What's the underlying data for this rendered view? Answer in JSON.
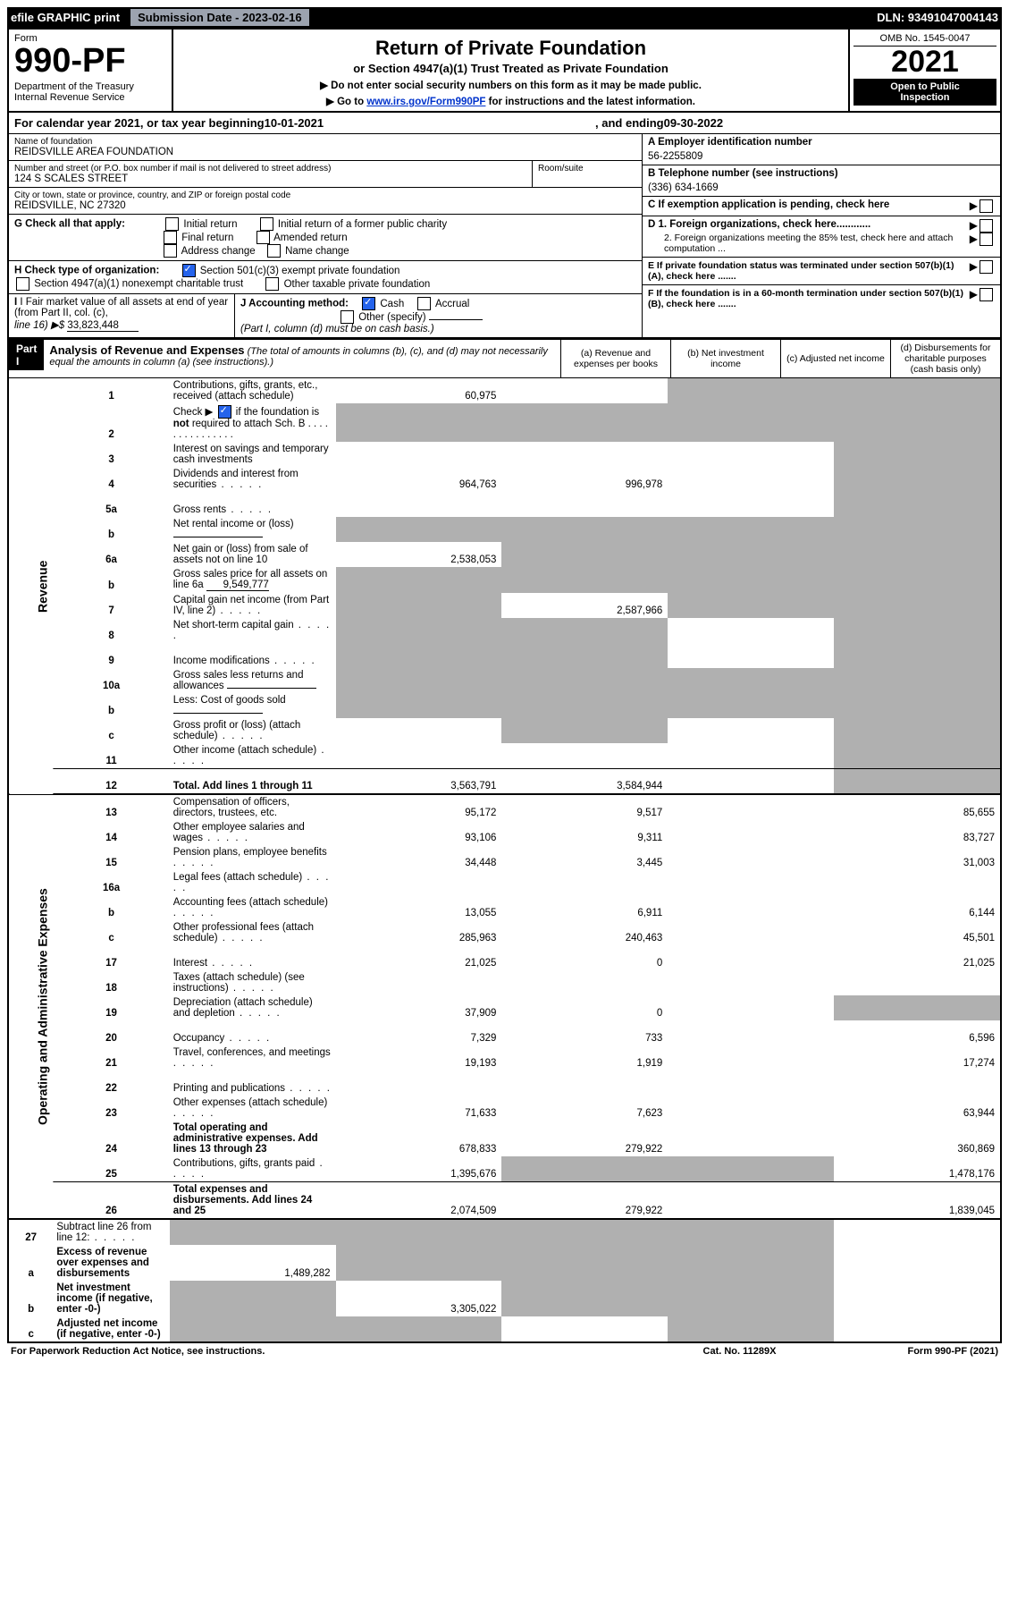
{
  "topbar": {
    "efile": "efile GRAPHIC print",
    "subdate_label": "Submission Date - 2023-02-16",
    "dln": "DLN: 93491047004143"
  },
  "header": {
    "form_label": "Form",
    "form_number": "990-PF",
    "dept": "Department of the Treasury",
    "irs": "Internal Revenue Service",
    "title": "Return of Private Foundation",
    "subtitle1": "or Section 4947(a)(1) Trust Treated as Private Foundation",
    "subtitle2": "▶ Do not enter social security numbers on this form as it may be made public.",
    "subtitle3_prefix": "▶ Go to ",
    "subtitle3_link": "www.irs.gov/Form990PF",
    "subtitle3_suffix": " for instructions and the latest information.",
    "omb": "OMB No. 1545-0047",
    "year": "2021",
    "open": "Open to Public",
    "inspection": "Inspection"
  },
  "period": {
    "prefix": "For calendar year 2021, or tax year beginning ",
    "begin": "10-01-2021",
    "mid": " , and ending ",
    "end": "09-30-2022"
  },
  "entity": {
    "name_label": "Name of foundation",
    "name": "REIDSVILLE AREA FOUNDATION",
    "addr_label": "Number and street (or P.O. box number if mail is not delivered to street address)",
    "addr": "124 S SCALES STREET",
    "room_label": "Room/suite",
    "city_label": "City or town, state or province, country, and ZIP or foreign postal code",
    "city": "REIDSVILLE, NC  27320",
    "ein_label": "A Employer identification number",
    "ein": "56-2255809",
    "phone_label": "B Telephone number (see instructions)",
    "phone": "(336) 634-1669",
    "c_label": "C If exemption application is pending, check here",
    "d1": "D 1. Foreign organizations, check here............",
    "d2": "2. Foreign organizations meeting the 85% test, check here and attach computation ...",
    "e_label": "E  If private foundation status was terminated under section 507(b)(1)(A), check here .......",
    "f_label": "F  If the foundation is in a 60-month termination under section 507(b)(1)(B), check here .......",
    "g_label": "G Check all that apply:",
    "g_opts": [
      "Initial return",
      "Initial return of a former public charity",
      "Final return",
      "Amended return",
      "Address change",
      "Name change"
    ],
    "h_label": "H Check type of organization:",
    "h1": "Section 501(c)(3) exempt private foundation",
    "h2": "Section 4947(a)(1) nonexempt charitable trust",
    "h3": "Other taxable private foundation",
    "i_label": "I Fair market value of all assets at end of year (from Part II, col. (c), ",
    "i_line": "line 16) ▶$ ",
    "i_value": "33,823,448",
    "j_label": "J Accounting method:",
    "j_cash": "Cash",
    "j_accrual": "Accrual",
    "j_other": "Other (specify)",
    "j_note": "(Part I, column (d) must be on cash basis.)"
  },
  "part1": {
    "label": "Part I",
    "title": "Analysis of Revenue and Expenses",
    "title_note": " (The total of amounts in columns (b), (c), and (d) may not necessarily equal the amounts in column (a) (see instructions).)",
    "col_a": "(a)   Revenue and expenses per books",
    "col_b": "(b)   Net investment income",
    "col_c": "(c)   Adjusted net income",
    "col_d": "(d)   Disbursements for charitable purposes (cash basis only)"
  },
  "side_labels": {
    "revenue": "Revenue",
    "expenses": "Operating and Administrative Expenses"
  },
  "lines": [
    {
      "n": "1",
      "d": "Contributions, gifts, grants, etc., received (attach schedule)",
      "a": "60,975",
      "b": "",
      "c": "sh",
      "dcol": "sh"
    },
    {
      "n": "2",
      "d": "Check ▶ ☑ if the foundation is not required to attach Sch. B",
      "a": "sh",
      "b": "sh",
      "c": "sh",
      "dcol": "sh",
      "check": true
    },
    {
      "n": "3",
      "d": "Interest on savings and temporary cash investments",
      "a": "",
      "b": "",
      "c": "",
      "dcol": "sh"
    },
    {
      "n": "4",
      "d": "Dividends and interest from securities",
      "a": "964,763",
      "b": "996,978",
      "c": "",
      "dcol": "sh"
    },
    {
      "n": "5a",
      "d": "Gross rents",
      "a": "",
      "b": "",
      "c": "",
      "dcol": "sh"
    },
    {
      "n": "b",
      "d": "Net rental income or (loss)",
      "a": "sh",
      "b": "sh",
      "c": "sh",
      "dcol": "sh",
      "inline": true
    },
    {
      "n": "6a",
      "d": "Net gain or (loss) from sale of assets not on line 10",
      "a": "2,538,053",
      "b": "sh",
      "c": "sh",
      "dcol": "sh"
    },
    {
      "n": "b",
      "d": "Gross sales price for all assets on line 6a",
      "a": "sh",
      "b": "sh",
      "c": "sh",
      "dcol": "sh",
      "inline_val": "9,549,777"
    },
    {
      "n": "7",
      "d": "Capital gain net income (from Part IV, line 2)",
      "a": "sh",
      "b": "2,587,966",
      "c": "sh",
      "dcol": "sh"
    },
    {
      "n": "8",
      "d": "Net short-term capital gain",
      "a": "sh",
      "b": "sh",
      "c": "",
      "dcol": "sh"
    },
    {
      "n": "9",
      "d": "Income modifications",
      "a": "sh",
      "b": "sh",
      "c": "",
      "dcol": "sh"
    },
    {
      "n": "10a",
      "d": "Gross sales less returns and allowances",
      "a": "sh",
      "b": "sh",
      "c": "sh",
      "dcol": "sh",
      "inline": true
    },
    {
      "n": "b",
      "d": "Less: Cost of goods sold",
      "a": "sh",
      "b": "sh",
      "c": "sh",
      "dcol": "sh",
      "inline": true
    },
    {
      "n": "c",
      "d": "Gross profit or (loss) (attach schedule)",
      "a": "",
      "b": "sh",
      "c": "",
      "dcol": "sh"
    },
    {
      "n": "11",
      "d": "Other income (attach schedule)",
      "a": "",
      "b": "",
      "c": "",
      "dcol": "sh"
    },
    {
      "n": "12",
      "d": "Total. Add lines 1 through 11",
      "a": "3,563,791",
      "b": "3,584,944",
      "c": "",
      "dcol": "sh",
      "bold": true
    }
  ],
  "exp_lines": [
    {
      "n": "13",
      "d": "Compensation of officers, directors, trustees, etc.",
      "a": "95,172",
      "b": "9,517",
      "c": "",
      "dcol": "85,655"
    },
    {
      "n": "14",
      "d": "Other employee salaries and wages",
      "a": "93,106",
      "b": "9,311",
      "c": "",
      "dcol": "83,727"
    },
    {
      "n": "15",
      "d": "Pension plans, employee benefits",
      "a": "34,448",
      "b": "3,445",
      "c": "",
      "dcol": "31,003"
    },
    {
      "n": "16a",
      "d": "Legal fees (attach schedule)",
      "a": "",
      "b": "",
      "c": "",
      "dcol": ""
    },
    {
      "n": "b",
      "d": "Accounting fees (attach schedule)",
      "a": "13,055",
      "b": "6,911",
      "c": "",
      "dcol": "6,144"
    },
    {
      "n": "c",
      "d": "Other professional fees (attach schedule)",
      "a": "285,963",
      "b": "240,463",
      "c": "",
      "dcol": "45,501"
    },
    {
      "n": "17",
      "d": "Interest",
      "a": "21,025",
      "b": "0",
      "c": "",
      "dcol": "21,025"
    },
    {
      "n": "18",
      "d": "Taxes (attach schedule) (see instructions)",
      "a": "",
      "b": "",
      "c": "",
      "dcol": ""
    },
    {
      "n": "19",
      "d": "Depreciation (attach schedule) and depletion",
      "a": "37,909",
      "b": "0",
      "c": "",
      "dcol": "sh"
    },
    {
      "n": "20",
      "d": "Occupancy",
      "a": "7,329",
      "b": "733",
      "c": "",
      "dcol": "6,596"
    },
    {
      "n": "21",
      "d": "Travel, conferences, and meetings",
      "a": "19,193",
      "b": "1,919",
      "c": "",
      "dcol": "17,274"
    },
    {
      "n": "22",
      "d": "Printing and publications",
      "a": "",
      "b": "",
      "c": "",
      "dcol": ""
    },
    {
      "n": "23",
      "d": "Other expenses (attach schedule)",
      "a": "71,633",
      "b": "7,623",
      "c": "",
      "dcol": "63,944",
      "icon": true
    },
    {
      "n": "24",
      "d": "Total operating and administrative expenses. Add lines 13 through 23",
      "a": "678,833",
      "b": "279,922",
      "c": "",
      "dcol": "360,869",
      "bold": true
    },
    {
      "n": "25",
      "d": "Contributions, gifts, grants paid",
      "a": "1,395,676",
      "b": "sh",
      "c": "sh",
      "dcol": "1,478,176"
    },
    {
      "n": "26",
      "d": "Total expenses and disbursements. Add lines 24 and 25",
      "a": "2,074,509",
      "b": "279,922",
      "c": "",
      "dcol": "1,839,045",
      "bold": true
    }
  ],
  "bottom_lines": [
    {
      "n": "27",
      "d": "Subtract line 26 from line 12:",
      "a": "sh",
      "b": "sh",
      "c": "sh",
      "dcol": "sh"
    },
    {
      "n": "a",
      "d": "Excess of revenue over expenses and disbursements",
      "a": "1,489,282",
      "b": "sh",
      "c": "sh",
      "dcol": "sh",
      "bold": true
    },
    {
      "n": "b",
      "d": "Net investment income (if negative, enter -0-)",
      "a": "sh",
      "b": "3,305,022",
      "c": "sh",
      "dcol": "sh",
      "bold": true
    },
    {
      "n": "c",
      "d": "Adjusted net income (if negative, enter -0-)",
      "a": "sh",
      "b": "sh",
      "c": "",
      "dcol": "sh",
      "bold": true
    }
  ],
  "footer": {
    "left": "For Paperwork Reduction Act Notice, see instructions.",
    "mid": "Cat. No. 11289X",
    "right": "Form 990-PF (2021)"
  }
}
